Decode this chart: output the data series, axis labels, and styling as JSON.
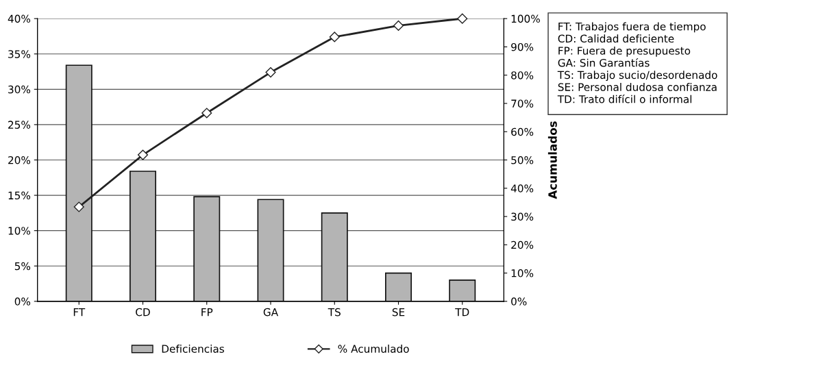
{
  "chart_data": {
    "type": "bar",
    "categories": [
      "FT",
      "CD",
      "FP",
      "GA",
      "TS",
      "SE",
      "TD"
    ],
    "series": [
      {
        "name": "Deficiencias",
        "color": "#b4b4b4",
        "values": [
          33.4,
          18.4,
          14.8,
          14.4,
          12.5,
          4.0,
          3.0
        ]
      },
      {
        "name": "% Acumulado",
        "type": "line",
        "axis": "y2",
        "color": "#222222",
        "values": [
          33.4,
          51.8,
          66.6,
          81.0,
          93.5,
          97.5,
          100
        ]
      }
    ],
    "ylim": [
      0,
      40
    ],
    "yticks": [
      {
        "value": 0,
        "label": "0%"
      },
      {
        "value": 5,
        "label": "5%"
      },
      {
        "value": 10,
        "label": "10%"
      },
      {
        "value": 15,
        "label": "15%"
      },
      {
        "value": 20,
        "label": "20%"
      },
      {
        "value": 25,
        "label": "25%"
      },
      {
        "value": 30,
        "label": "30%"
      },
      {
        "value": 35,
        "label": "35%"
      },
      {
        "value": 40,
        "label": "40%"
      }
    ],
    "y2lim": [
      0,
      100
    ],
    "y2ticks": [
      {
        "value": 0,
        "label": "0%"
      },
      {
        "value": 10,
        "label": "10%"
      },
      {
        "value": 20,
        "label": "20%"
      },
      {
        "value": 30,
        "label": "30%"
      },
      {
        "value": 40,
        "label": "40%"
      },
      {
        "value": 50,
        "label": "50%"
      },
      {
        "value": 60,
        "label": "60%"
      },
      {
        "value": 70,
        "label": "70%"
      },
      {
        "value": 80,
        "label": "80%"
      },
      {
        "value": 90,
        "label": "90%"
      },
      {
        "value": 100,
        "label": "100%"
      }
    ],
    "y2label": "Acumulados",
    "grid": "y",
    "legend": "bottom",
    "marker": "diamond",
    "line_style": "solid",
    "annotations": [
      "FT: Trabajos fuera de tiempo\nCD: Calidad deficiente\nFP: Fuera de presupuesto\nGA: Sin Garantías\nTS: Trabajo sucio/desordenado\nSE: Personal dudosa confianza\nTD: Trato difícil o informal"
    ]
  }
}
